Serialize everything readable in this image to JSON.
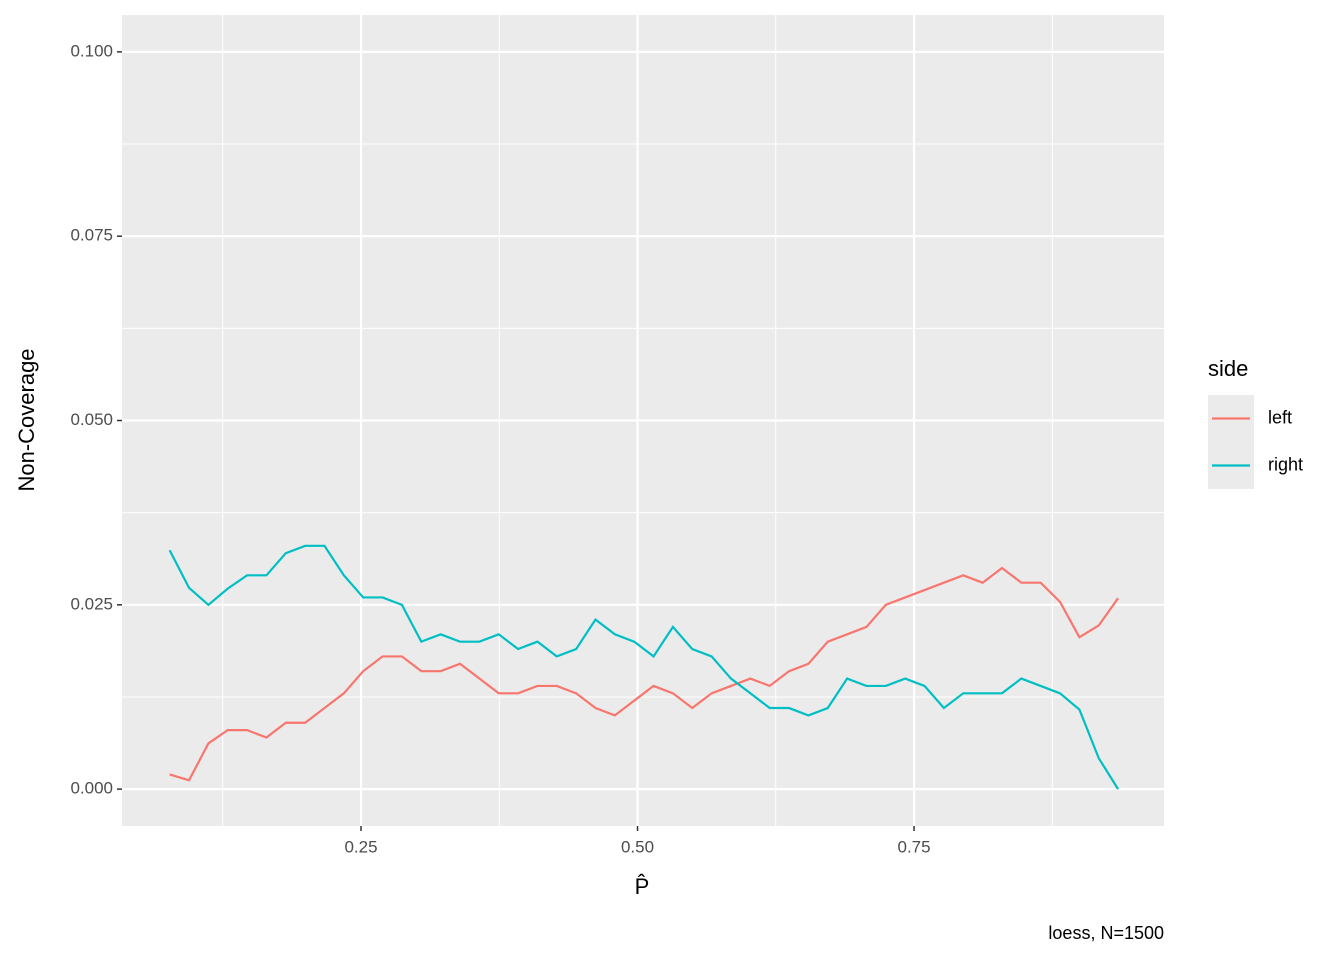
{
  "chart_data": {
    "type": "line",
    "x_label": "P̂",
    "y_label": "Non-Coverage",
    "caption": "loess, N=1500",
    "legend_title": "side",
    "x": [
      0.077,
      0.0945,
      0.112,
      0.1295,
      0.147,
      0.1645,
      0.182,
      0.1995,
      0.217,
      0.2345,
      0.252,
      0.2695,
      0.287,
      0.3045,
      0.322,
      0.3395,
      0.357,
      0.3745,
      0.392,
      0.4095,
      0.427,
      0.4445,
      0.462,
      0.4795,
      0.497,
      0.5145,
      0.532,
      0.5495,
      0.567,
      0.5845,
      0.602,
      0.6195,
      0.637,
      0.6545,
      0.672,
      0.6895,
      0.707,
      0.7245,
      0.742,
      0.7595,
      0.777,
      0.7945,
      0.812,
      0.8295,
      0.847,
      0.8645,
      0.882,
      0.8995,
      0.917,
      0.9345
    ],
    "series": [
      {
        "name": "left",
        "color": "#F8766D",
        "values": [
          0.002,
          0.0012,
          0.0062,
          0.008,
          0.008,
          0.007,
          0.009,
          0.009,
          0.011,
          0.013,
          0.016,
          0.018,
          0.018,
          0.016,
          0.016,
          0.017,
          0.015,
          0.013,
          0.013,
          0.014,
          0.014,
          0.013,
          0.011,
          0.01,
          0.012,
          0.014,
          0.013,
          0.011,
          0.013,
          0.014,
          0.015,
          0.014,
          0.016,
          0.017,
          0.02,
          0.021,
          0.022,
          0.025,
          0.026,
          0.027,
          0.028,
          0.029,
          0.028,
          0.03,
          0.028,
          0.028,
          0.0254,
          0.0206,
          0.0222,
          0.0259
        ]
      },
      {
        "name": "right",
        "color": "#00BFC4",
        "values": [
          0.0324,
          0.0273,
          0.025,
          0.0272,
          0.029,
          0.029,
          0.032,
          0.033,
          0.033,
          0.029,
          0.026,
          0.026,
          0.025,
          0.02,
          0.021,
          0.02,
          0.02,
          0.021,
          0.019,
          0.02,
          0.018,
          0.019,
          0.023,
          0.021,
          0.02,
          0.018,
          0.022,
          0.019,
          0.018,
          0.015,
          0.013,
          0.011,
          0.011,
          0.01,
          0.011,
          0.015,
          0.014,
          0.014,
          0.015,
          0.014,
          0.011,
          0.013,
          0.013,
          0.013,
          0.015,
          0.014,
          0.013,
          0.0108,
          0.0042,
          0.0
        ]
      }
    ],
    "xlim": [
      0.0339,
      0.976
    ],
    "ylim": [
      -0.005,
      0.105
    ],
    "xticks": [
      0.25,
      {
        "value": 0.5,
        "label": "0.50"
      },
      0.75
    ],
    "yticks": [
      {
        "value": 0,
        "label": "0.000"
      },
      {
        "value": 0.025,
        "label": "0.025"
      },
      {
        "value": 0.05,
        "label": "0.050"
      },
      {
        "value": 0.075,
        "label": "0.075"
      },
      {
        "value": 0.1,
        "label": "0.100"
      }
    ],
    "grid": true,
    "legend": "right"
  }
}
